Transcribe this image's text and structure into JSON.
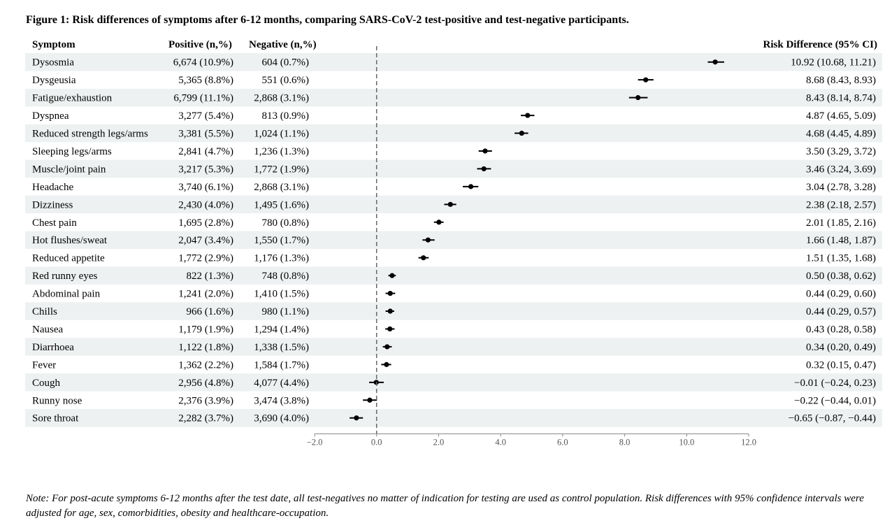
{
  "title": "Figure 1: Risk differences of symptoms after 6-12 months, comparing SARS-CoV-2 test-positive and test-negative participants.",
  "headers": {
    "symptom": "Symptom",
    "positive": "Positive (n,%)",
    "negative": "Negative (n,%)",
    "rd": "Risk Difference (95% CI)"
  },
  "note": "Note: For post-acute symptoms 6-12 months after the test date, all test-negatives no matter of indication for testing are used as control population. Risk differences with 95% confidence intervals were adjusted for age, sex, comorbidities, obesity and healthcare-occupation.",
  "chart_data": {
    "type": "forest",
    "xlim": [
      -2.0,
      12.0
    ],
    "xticks": [
      -2.0,
      0.0,
      2.0,
      4.0,
      6.0,
      8.0,
      10.0,
      12.0
    ],
    "xtick_labels": [
      "−2.0",
      "0.0",
      "2.0",
      "4.0",
      "6.0",
      "8.0",
      "10.0",
      "12.0"
    ],
    "reference_line": 0,
    "rows": [
      {
        "symptom": "Dysosmia",
        "positive": "6,674 (10.9%)",
        "negative": "604 (0.7%)",
        "rd": 10.92,
        "lo": 10.68,
        "hi": 11.21,
        "rd_text": "10.92 (10.68, 11.21)"
      },
      {
        "symptom": "Dysgeusia",
        "positive": "5,365 (8.8%)",
        "negative": "551 (0.6%)",
        "rd": 8.68,
        "lo": 8.43,
        "hi": 8.93,
        "rd_text": "8.68 (8.43, 8.93)"
      },
      {
        "symptom": "Fatigue/exhaustion",
        "positive": "6,799 (11.1%)",
        "negative": "2,868 (3.1%)",
        "rd": 8.43,
        "lo": 8.14,
        "hi": 8.74,
        "rd_text": "8.43 (8.14, 8.74)"
      },
      {
        "symptom": "Dyspnea",
        "positive": "3,277 (5.4%)",
        "negative": "813 (0.9%)",
        "rd": 4.87,
        "lo": 4.65,
        "hi": 5.09,
        "rd_text": "4.87 (4.65, 5.09)"
      },
      {
        "symptom": "Reduced strength legs/arms",
        "positive": "3,381 (5.5%)",
        "negative": "1,024 (1.1%)",
        "rd": 4.68,
        "lo": 4.45,
        "hi": 4.89,
        "rd_text": "4.68 (4.45, 4.89)"
      },
      {
        "symptom": "Sleeping legs/arms",
        "positive": "2,841 (4.7%)",
        "negative": "1,236 (1.3%)",
        "rd": 3.5,
        "lo": 3.29,
        "hi": 3.72,
        "rd_text": "3.50 (3.29, 3.72)"
      },
      {
        "symptom": "Muscle/joint pain",
        "positive": "3,217 (5.3%)",
        "negative": "1,772 (1.9%)",
        "rd": 3.46,
        "lo": 3.24,
        "hi": 3.69,
        "rd_text": "3.46 (3.24, 3.69)"
      },
      {
        "symptom": "Headache",
        "positive": "3,740 (6.1%)",
        "negative": "2,868 (3.1%)",
        "rd": 3.04,
        "lo": 2.78,
        "hi": 3.28,
        "rd_text": "3.04 (2.78, 3.28)"
      },
      {
        "symptom": "Dizziness",
        "positive": "2,430 (4.0%)",
        "negative": "1,495 (1.6%)",
        "rd": 2.38,
        "lo": 2.18,
        "hi": 2.57,
        "rd_text": "2.38 (2.18, 2.57)"
      },
      {
        "symptom": "Chest pain",
        "positive": "1,695 (2.8%)",
        "negative": "780 (0.8%)",
        "rd": 2.01,
        "lo": 1.85,
        "hi": 2.16,
        "rd_text": "2.01 (1.85, 2.16)"
      },
      {
        "symptom": "Hot flushes/sweat",
        "positive": "2,047 (3.4%)",
        "negative": "1,550 (1.7%)",
        "rd": 1.66,
        "lo": 1.48,
        "hi": 1.87,
        "rd_text": "1.66 (1.48, 1.87)"
      },
      {
        "symptom": "Reduced appetite",
        "positive": "1,772 (2.9%)",
        "negative": "1,176 (1.3%)",
        "rd": 1.51,
        "lo": 1.35,
        "hi": 1.68,
        "rd_text": "1.51 (1.35, 1.68)"
      },
      {
        "symptom": "Red runny eyes",
        "positive": "822 (1.3%)",
        "negative": "748 (0.8%)",
        "rd": 0.5,
        "lo": 0.38,
        "hi": 0.62,
        "rd_text": "0.50 (0.38, 0.62)"
      },
      {
        "symptom": "Abdominal pain",
        "positive": "1,241 (2.0%)",
        "negative": "1,410 (1.5%)",
        "rd": 0.44,
        "lo": 0.29,
        "hi": 0.6,
        "rd_text": "0.44 (0.29, 0.60)"
      },
      {
        "symptom": "Chills",
        "positive": "966 (1.6%)",
        "negative": "980 (1.1%)",
        "rd": 0.44,
        "lo": 0.29,
        "hi": 0.57,
        "rd_text": "0.44 (0.29, 0.57)"
      },
      {
        "symptom": "Nausea",
        "positive": "1,179 (1.9%)",
        "negative": "1,294 (1.4%)",
        "rd": 0.43,
        "lo": 0.28,
        "hi": 0.58,
        "rd_text": "0.43 (0.28, 0.58)"
      },
      {
        "symptom": "Diarrhoea",
        "positive": "1,122 (1.8%)",
        "negative": "1,338 (1.5%)",
        "rd": 0.34,
        "lo": 0.2,
        "hi": 0.49,
        "rd_text": "0.34 (0.20, 0.49)"
      },
      {
        "symptom": "Fever",
        "positive": "1,362 (2.2%)",
        "negative": "1,584 (1.7%)",
        "rd": 0.32,
        "lo": 0.15,
        "hi": 0.47,
        "rd_text": "0.32 (0.15, 0.47)"
      },
      {
        "symptom": "Cough",
        "positive": "2,956 (4.8%)",
        "negative": "4,077 (4.4%)",
        "rd": -0.01,
        "lo": -0.24,
        "hi": 0.23,
        "rd_text": "−0.01 (−0.24, 0.23)"
      },
      {
        "symptom": "Runny nose",
        "positive": "2,376 (3.9%)",
        "negative": "3,474 (3.8%)",
        "rd": -0.22,
        "lo": -0.44,
        "hi": 0.01,
        "rd_text": "−0.22 (−0.44, 0.01)"
      },
      {
        "symptom": "Sore throat",
        "positive": "2,282 (3.7%)",
        "negative": "3,690 (4.0%)",
        "rd": -0.65,
        "lo": -0.87,
        "hi": -0.44,
        "rd_text": "−0.65 (−0.87, −0.44)"
      }
    ]
  }
}
